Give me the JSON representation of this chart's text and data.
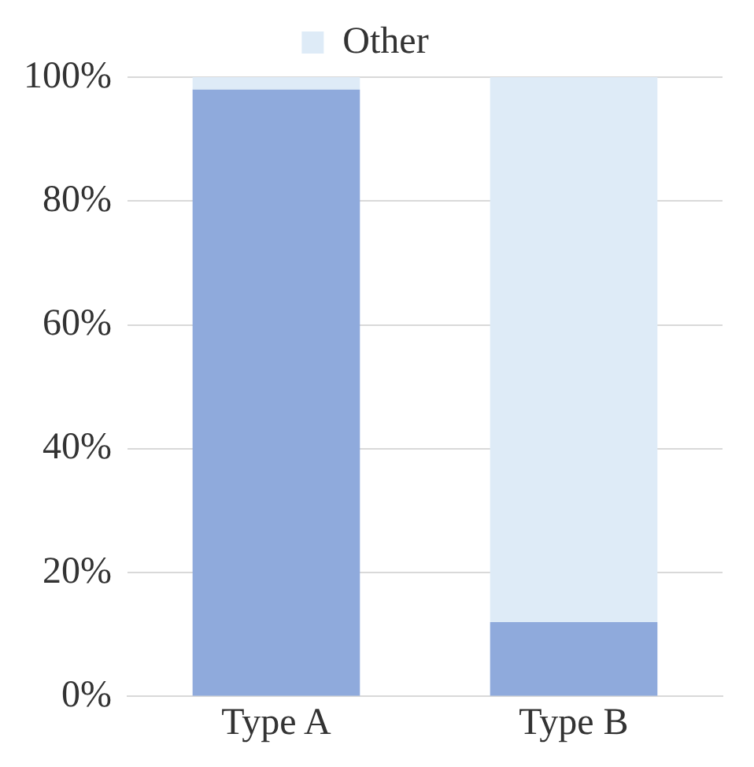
{
  "chart_data": {
    "type": "bar",
    "stacked": true,
    "categories": [
      "Type A",
      "Type B"
    ],
    "series": [
      {
        "color": "#8faadc",
        "values": [
          98,
          12
        ]
      },
      {
        "name": "Other",
        "color": "#deebf7",
        "values": [
          2,
          88
        ]
      }
    ],
    "ylim": [
      0,
      100
    ],
    "yticks": [
      {
        "value": 0,
        "label": "0%"
      },
      {
        "value": 20,
        "label": "20%"
      },
      {
        "value": 40,
        "label": "40%"
      },
      {
        "value": 60,
        "label": "60%"
      },
      {
        "value": 80,
        "label": "80%"
      },
      {
        "value": 100,
        "label": "100%"
      }
    ],
    "grid": "y",
    "legend": "top"
  }
}
